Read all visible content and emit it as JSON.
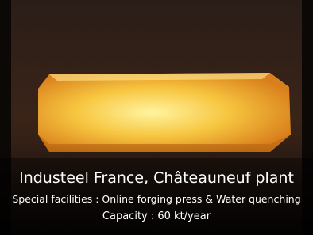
{
  "caption": {
    "title": "Industeel France, Châteauneuf plant",
    "facilities": "Special facilities : Online forging press & Water quenching",
    "capacity": "Capacity : 60 kt/year"
  }
}
